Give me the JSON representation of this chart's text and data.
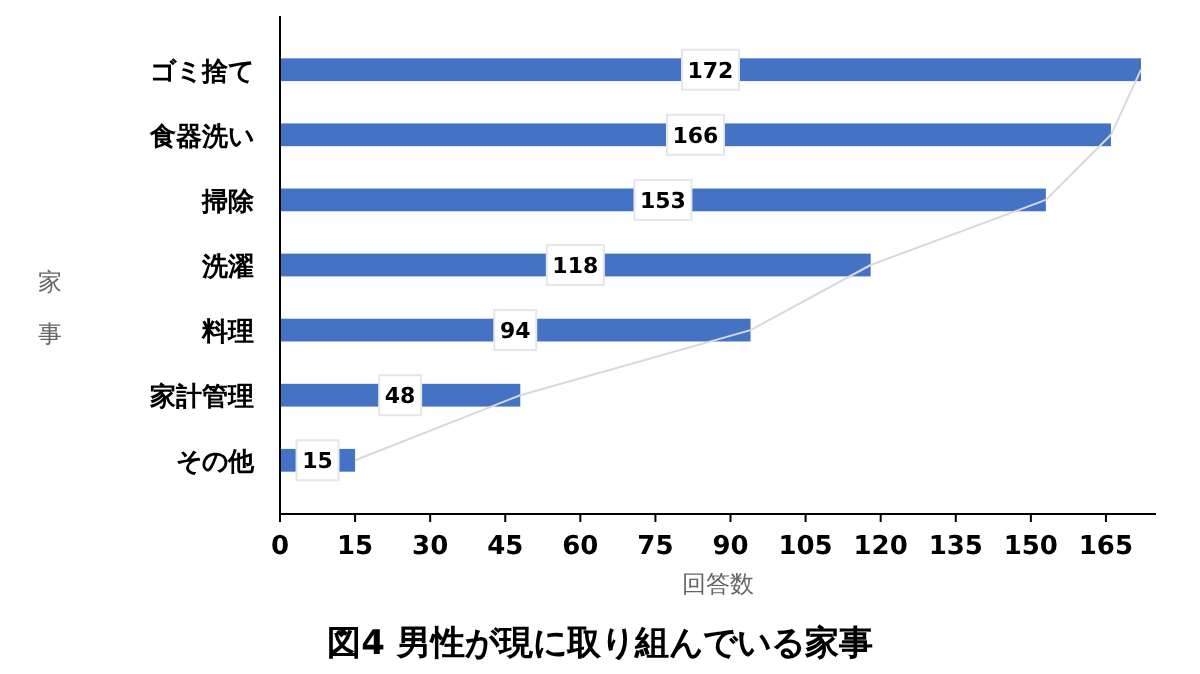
{
  "chart_data": {
    "type": "bar",
    "orientation": "horizontal",
    "title": "図4 男性が現に取り組んでいる家事",
    "xlabel": "回答数",
    "ylabel": "家事",
    "categories": [
      "ゴミ捨て",
      "食器洗い",
      "掃除",
      "洗濯",
      "料理",
      "家計管理",
      "その他"
    ],
    "series": [
      {
        "color": "#4472c4",
        "values": [
          172,
          166,
          153,
          118,
          94,
          48,
          15
        ],
        "value_labels": [
          "172",
          "166",
          "153",
          "118",
          "94",
          "48",
          "15"
        ]
      },
      {
        "type": "line",
        "color": "#d9d9d9",
        "values": [
          172,
          166,
          153,
          118,
          94,
          48,
          15
        ]
      }
    ],
    "xlim": [
      0,
      175
    ],
    "xticks": [
      0,
      15,
      30,
      45,
      60,
      75,
      90,
      105,
      120,
      135,
      150,
      165
    ]
  }
}
